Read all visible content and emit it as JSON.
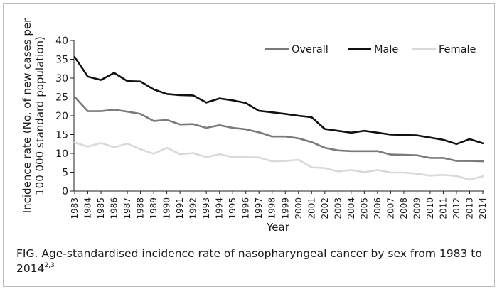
{
  "chart_data": {
    "type": "line",
    "ylabel_line1": "Incidence rate (No. of new cases per",
    "ylabel_line2": "100 000 standard population)",
    "xlabel": "Year",
    "ylim": [
      0,
      40
    ],
    "yticks": [
      0,
      5,
      10,
      15,
      20,
      25,
      30,
      35,
      40
    ],
    "grid": false,
    "legend_position": "top-right",
    "x": [
      "1983",
      "1984",
      "1985",
      "1986",
      "1987",
      "1988",
      "1989",
      "1990",
      "1991",
      "1992",
      "1993",
      "1994",
      "1995",
      "1996",
      "1997",
      "1998",
      "1999",
      "2000",
      "2001",
      "2002",
      "2003",
      "2004",
      "2005",
      "2006",
      "2007",
      "2008",
      "2009",
      "2010",
      "2011",
      "2012",
      "2013",
      "2014"
    ],
    "series": [
      {
        "name": "Overall",
        "color": "#7a7a7a",
        "values": [
          25.0,
          21.2,
          21.2,
          21.6,
          21.1,
          20.5,
          18.6,
          18.9,
          17.7,
          17.8,
          16.8,
          17.5,
          16.8,
          16.4,
          15.6,
          14.5,
          14.5,
          14.0,
          13.0,
          11.5,
          10.8,
          10.6,
          10.6,
          10.6,
          9.7,
          9.6,
          9.5,
          8.8,
          8.8,
          8.0,
          8.0,
          7.9
        ]
      },
      {
        "name": "Male",
        "color": "#111111",
        "values": [
          35.6,
          30.4,
          29.5,
          31.4,
          29.2,
          29.1,
          27.0,
          25.8,
          25.5,
          25.4,
          23.5,
          24.6,
          24.1,
          23.4,
          21.3,
          20.9,
          20.5,
          20.0,
          19.6,
          16.5,
          16.0,
          15.5,
          16.0,
          15.5,
          15.0,
          14.9,
          14.8,
          14.2,
          13.6,
          12.5,
          13.8,
          12.7
        ]
      },
      {
        "name": "Female",
        "color": "#d9d9d9",
        "values": [
          12.9,
          11.8,
          12.8,
          11.6,
          12.6,
          11.1,
          9.9,
          11.5,
          9.8,
          10.1,
          9.0,
          9.8,
          9.0,
          9.0,
          8.9,
          7.9,
          8.0,
          8.3,
          6.3,
          6.1,
          5.2,
          5.6,
          5.0,
          5.6,
          4.9,
          4.9,
          4.6,
          4.1,
          4.3,
          4.0,
          3.0,
          3.9
        ]
      }
    ]
  },
  "caption": {
    "text": "FIG. Age-standardised incidence rate of nasopharyngeal cancer by sex from 1983 to 2014",
    "sup": "2,3"
  }
}
